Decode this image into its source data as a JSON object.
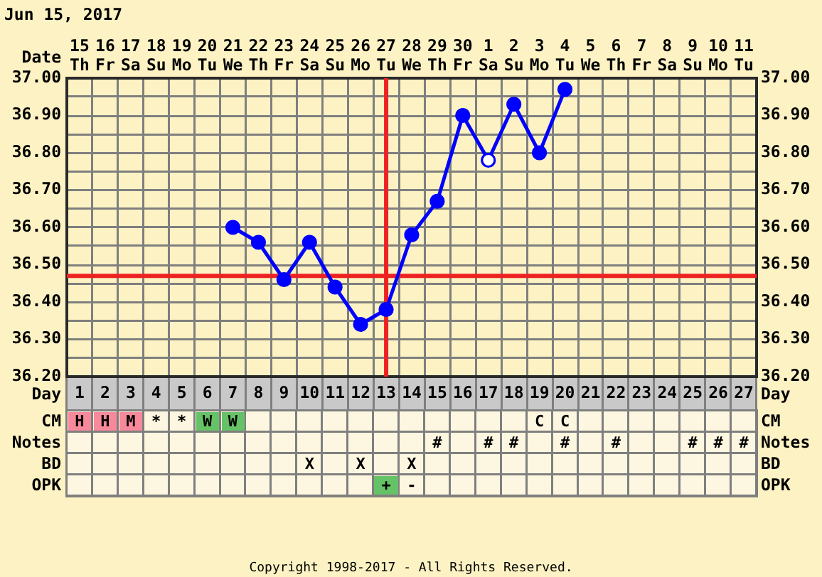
{
  "chart_data": [
    {
      "type": "line",
      "title": "Jun 15, 2017",
      "xlabel": "Date",
      "x2label": "Day",
      "categories": [
        "15\nTh",
        "16\nFr",
        "17\nSa",
        "18\nSu",
        "19\nMo",
        "20\nTu",
        "21\nWe",
        "22\nTh",
        "23\nFr",
        "24\nSa",
        "25\nSu",
        "26\nMo",
        "27\nTu",
        "28\nWe",
        "29\nTh",
        "30\nFr",
        "1\nSa",
        "2\nSu",
        "3\nMo",
        "4\nTu",
        "5\nWe",
        "6\nTh",
        "7\nFr",
        "8\nSa",
        "9\nSu",
        "10\nMo",
        "11\nTu"
      ],
      "series": [
        {
          "color": "#0000ff",
          "values": [
            null,
            null,
            null,
            null,
            null,
            null,
            36.6,
            36.56,
            36.46,
            36.56,
            36.44,
            36.34,
            36.38,
            36.58,
            36.67,
            36.9,
            36.78,
            36.93,
            36.8,
            36.97,
            null,
            null,
            null,
            null,
            null,
            null,
            null
          ],
          "colors": [
            null,
            null,
            null,
            null,
            null,
            null,
            "#0000ff",
            "#0000ff",
            "#0000ff",
            "#0000ff",
            "#0000ff",
            "#0000ff",
            "#0000ff",
            "#0000ff",
            "#0000ff",
            "#0000ff",
            "#ffffff",
            "#0000ff",
            "#0000ff",
            "#0000ff",
            null,
            null,
            null,
            null,
            null,
            null,
            null
          ]
        }
      ],
      "x2lim": [
        0.5,
        27.5
      ],
      "x2ticks": [
        1,
        2,
        3,
        4,
        5,
        6,
        7,
        8,
        9,
        10,
        11,
        12,
        13,
        14,
        15,
        16,
        17,
        18,
        19,
        20,
        21,
        22,
        23,
        24,
        25,
        26,
        27
      ],
      "ylim": [
        36.2,
        37.0
      ],
      "yticks": [
        {
          "value": 36.2,
          "label": "36.20"
        },
        {
          "value": 36.25,
          "label": null
        },
        {
          "value": 36.3,
          "label": "36.30"
        },
        {
          "value": 36.35,
          "label": null
        },
        {
          "value": 36.4,
          "label": "36.40"
        },
        {
          "value": 36.45,
          "label": null
        },
        {
          "value": 36.5,
          "label": "36.50"
        },
        {
          "value": 36.55,
          "label": null
        },
        {
          "value": 36.6,
          "label": "36.60"
        },
        {
          "value": 36.65,
          "label": null
        },
        {
          "value": 36.7,
          "label": "36.70"
        },
        {
          "value": 36.75,
          "label": null
        },
        {
          "value": 36.8,
          "label": "36.80"
        },
        {
          "value": 36.85,
          "label": null
        },
        {
          "value": 36.9,
          "label": "36.90"
        },
        {
          "value": 36.95,
          "label": null
        },
        {
          "value": 37.0,
          "label": "37.00"
        }
      ],
      "y2lim": [
        36.2,
        37.0
      ],
      "y2ticks": [
        {
          "value": 36.2,
          "label": "36.20"
        },
        {
          "value": 36.3,
          "label": "36.30"
        },
        {
          "value": 36.4,
          "label": "36.40"
        },
        {
          "value": 36.5,
          "label": "36.50"
        },
        {
          "value": 36.6,
          "label": "36.60"
        },
        {
          "value": 36.7,
          "label": "36.70"
        },
        {
          "value": 36.8,
          "label": "36.80"
        },
        {
          "value": 36.9,
          "label": "36.90"
        },
        {
          "value": 37.0,
          "label": "37.00"
        }
      ],
      "ref_lines": [
        {
          "axis": "x",
          "value": "27\nTu",
          "color": "#ee2222"
        },
        {
          "axis": "y",
          "value": 36.47,
          "color": "#ee2222"
        }
      ],
      "grid": true,
      "marker": "circle",
      "line_style": "solid",
      "annotations": [
        "Copyright 1998-2017 - All Rights Reserved."
      ]
    },
    {
      "type": "other",
      "categories": [
        null,
        null,
        null,
        null,
        null,
        null,
        null,
        null,
        null,
        null,
        null,
        null,
        null,
        null,
        null,
        null,
        null,
        null,
        null,
        null,
        null,
        null,
        null,
        null,
        null,
        null,
        null
      ],
      "y_categories": [
        "CM",
        "Notes",
        "BD",
        "OPK"
      ],
      "y2_categories": [
        "CM",
        "Notes",
        "BD",
        "OPK"
      ],
      "cell_labels": [
        [
          "H",
          "H",
          "M",
          "*",
          "*",
          "W",
          "W",
          null,
          null,
          null,
          null,
          null,
          null,
          null,
          null,
          null,
          null,
          null,
          "C",
          "C",
          null,
          null,
          null,
          null,
          null,
          null,
          null
        ],
        [
          null,
          null,
          null,
          null,
          null,
          null,
          null,
          null,
          null,
          null,
          null,
          null,
          null,
          null,
          "#",
          null,
          "#",
          "#",
          null,
          "#",
          null,
          "#",
          null,
          null,
          "#",
          "#",
          "#"
        ],
        [
          null,
          null,
          null,
          null,
          null,
          null,
          null,
          null,
          null,
          "X",
          null,
          "X",
          null,
          "X",
          null,
          null,
          null,
          null,
          null,
          null,
          null,
          null,
          null,
          null,
          null,
          null,
          null
        ],
        [
          null,
          null,
          null,
          null,
          null,
          null,
          null,
          null,
          null,
          null,
          null,
          null,
          "+",
          "-",
          null,
          null,
          null,
          null,
          null,
          null,
          null,
          null,
          null,
          null,
          null,
          null,
          null
        ]
      ],
      "colors": [
        [
          "#f7899b",
          "#f7899b",
          "#f7899b",
          null,
          null,
          "#66c266",
          "#66c266",
          null,
          null,
          null,
          null,
          null,
          null,
          null,
          null,
          null,
          null,
          null,
          null,
          null,
          null,
          null,
          null,
          null,
          null,
          null,
          null
        ],
        [
          null,
          null,
          null,
          null,
          null,
          null,
          null,
          null,
          null,
          null,
          null,
          null,
          null,
          null,
          null,
          null,
          null,
          null,
          null,
          null,
          null,
          null,
          null,
          null,
          null,
          null,
          null
        ],
        [
          null,
          null,
          null,
          null,
          null,
          null,
          null,
          null,
          null,
          null,
          null,
          null,
          null,
          null,
          null,
          null,
          null,
          null,
          null,
          null,
          null,
          null,
          null,
          null,
          null,
          null,
          null
        ],
        [
          null,
          null,
          null,
          null,
          null,
          null,
          null,
          null,
          null,
          null,
          null,
          null,
          "#66c266",
          null,
          null,
          null,
          null,
          null,
          null,
          null,
          null,
          null,
          null,
          null,
          null,
          null,
          null
        ]
      ]
    }
  ]
}
